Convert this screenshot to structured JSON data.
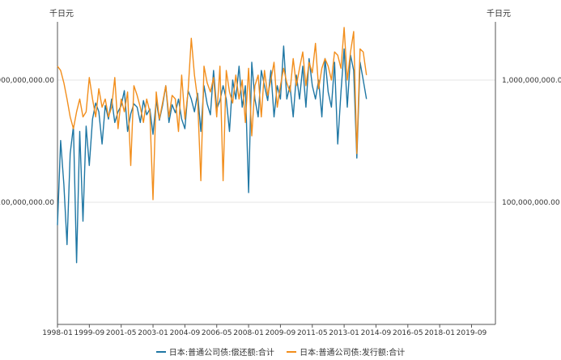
{
  "chart_data": {
    "type": "line",
    "unit_left": "千日元",
    "unit_right": "千日元",
    "y_scale": "log",
    "ylim": [
      10000000,
      3000000000
    ],
    "y_ticks": [
      {
        "value": 100000000,
        "label": "100,000,000.00"
      },
      {
        "value": 1000000000,
        "label": "1,000,000,000.00"
      }
    ],
    "x_ticks": [
      "1998-01",
      "1999-09",
      "2001-05",
      "2003-01",
      "2004-09",
      "2006-05",
      "2008-01",
      "2009-09",
      "2011-05",
      "2013-01",
      "2014-09",
      "2016-05",
      "2018-01",
      "2019-09"
    ],
    "x_start": "1998-01",
    "x_end": "2020-12",
    "grid_horizontal": true,
    "legend_position": "bottom",
    "series": [
      {
        "name": "日本:普通公司债:偿还额:合计",
        "color": "#1f77a4",
        "sampled_every_months": 2,
        "values": [
          65000000,
          320000000,
          140000000,
          45000000,
          250000000,
          420000000,
          32000000,
          380000000,
          70000000,
          420000000,
          200000000,
          480000000,
          650000000,
          550000000,
          300000000,
          620000000,
          480000000,
          700000000,
          450000000,
          550000000,
          620000000,
          820000000,
          380000000,
          530000000,
          640000000,
          600000000,
          450000000,
          680000000,
          520000000,
          580000000,
          360000000,
          680000000,
          470000000,
          620000000,
          900000000,
          450000000,
          630000000,
          540000000,
          700000000,
          480000000,
          400000000,
          820000000,
          700000000,
          550000000,
          780000000,
          380000000,
          900000000,
          640000000,
          520000000,
          1200000000,
          580000000,
          680000000,
          900000000,
          700000000,
          380000000,
          1000000000,
          700000000,
          1300000000,
          600000000,
          900000000,
          120000000,
          1400000000,
          700000000,
          500000000,
          1200000000,
          900000000,
          680000000,
          1200000000,
          500000000,
          900000000,
          700000000,
          1900000000,
          700000000,
          900000000,
          500000000,
          1100000000,
          700000000,
          1300000000,
          600000000,
          1500000000,
          900000000,
          700000000,
          1000000000,
          500000000,
          1500000000,
          800000000,
          600000000,
          1400000000,
          300000000,
          800000000,
          1800000000,
          600000000,
          1600000000,
          1200000000,
          230000000,
          1400000000,
          1000000000,
          700000000
        ]
      },
      {
        "name": "日本:普通公司债:发行额:合计",
        "color": "#f28e1c",
        "sampled_every_months": 2,
        "values": [
          1300000000,
          1200000000,
          950000000,
          700000000,
          500000000,
          400000000,
          550000000,
          700000000,
          500000000,
          550000000,
          1050000000,
          700000000,
          500000000,
          850000000,
          600000000,
          700000000,
          500000000,
          600000000,
          1050000000,
          400000000,
          700000000,
          550000000,
          800000000,
          200000000,
          900000000,
          750000000,
          600000000,
          450000000,
          700000000,
          550000000,
          105000000,
          800000000,
          480000000,
          650000000,
          900000000,
          500000000,
          750000000,
          700000000,
          380000000,
          1100000000,
          480000000,
          800000000,
          2200000000,
          1100000000,
          700000000,
          150000000,
          1300000000,
          950000000,
          800000000,
          1050000000,
          500000000,
          1300000000,
          150000000,
          1200000000,
          800000000,
          650000000,
          1100000000,
          700000000,
          1000000000,
          450000000,
          1250000000,
          350000000,
          900000000,
          1100000000,
          500000000,
          1200000000,
          750000000,
          1000000000,
          1400000000,
          600000000,
          900000000,
          1250000000,
          950000000,
          800000000,
          1500000000,
          900000000,
          1250000000,
          1700000000,
          900000000,
          1400000000,
          1150000000,
          2000000000,
          850000000,
          1250000000,
          1500000000,
          1300000000,
          1000000000,
          1700000000,
          1600000000,
          1250000000,
          2700000000,
          1000000000,
          1700000000,
          2500000000,
          250000000,
          1800000000,
          1700000000,
          1100000000
        ]
      }
    ]
  }
}
